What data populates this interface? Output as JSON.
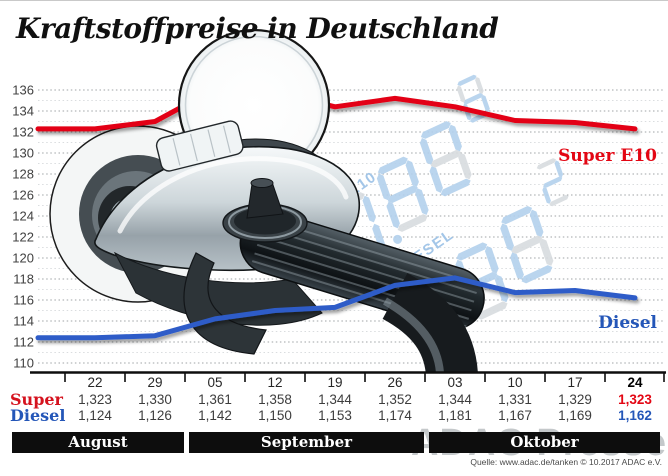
{
  "title": "Kraftstoffpreise in Deutschland",
  "source": "Quelle: www.adac.de/tanken  © 10.2017  ADAC e.V.",
  "watermark": "ADAC Presse",
  "chart_data": {
    "type": "line",
    "title": "Kraftstoffpreise in Deutschland",
    "ylim": [
      110,
      136
    ],
    "ytick_step": 2,
    "grid": "dotted-horizontal",
    "categories": [
      "22",
      "29",
      "05",
      "12",
      "19",
      "26",
      "03",
      "10",
      "17",
      "24"
    ],
    "month_groups": [
      {
        "label": "August",
        "from": 0,
        "to": 1
      },
      {
        "label": "September",
        "from": 2,
        "to": 5
      },
      {
        "label": "Oktober",
        "from": 6,
        "to": 9
      }
    ],
    "series": [
      {
        "name": "Super",
        "legend": "Super E10",
        "color": "#e30613",
        "values": [
          1.323,
          1.33,
          1.361,
          1.358,
          1.344,
          1.352,
          1.344,
          1.331,
          1.329,
          1.323
        ]
      },
      {
        "name": "Diesel",
        "legend": "Diesel",
        "color": "#2d5cc8",
        "values": [
          1.124,
          1.126,
          1.142,
          1.15,
          1.153,
          1.174,
          1.181,
          1.167,
          1.169,
          1.162
        ]
      }
    ],
    "value_format": "comma-3-decimals",
    "legend_position": "right-of-lines"
  },
  "pump_display_watermark": {
    "groups": [
      {
        "label": "SUPER E10",
        "digits": "088",
        "sup": "8"
      },
      {
        "label": "DIESEL",
        "digits": "88",
        "sup": "2"
      }
    ]
  }
}
